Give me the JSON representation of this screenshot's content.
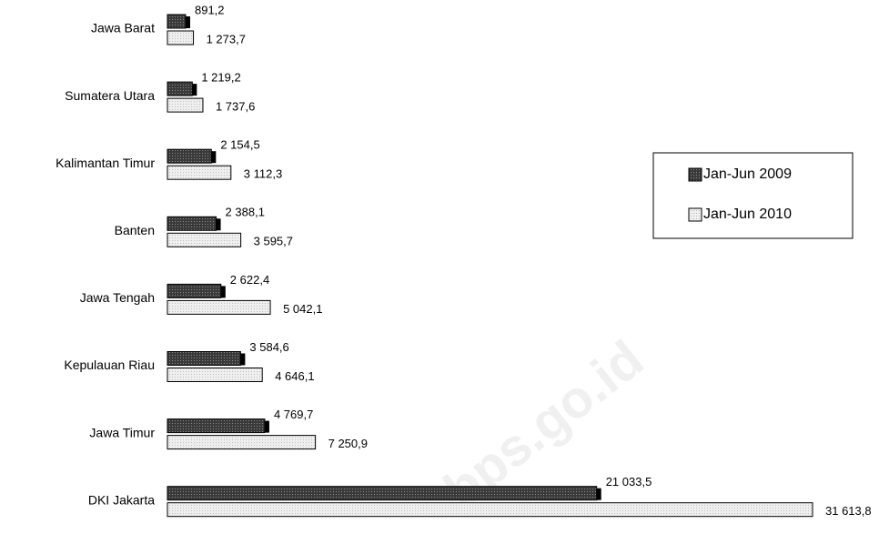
{
  "chart_data": {
    "type": "bar",
    "orientation": "horizontal",
    "categories": [
      "Jawa Barat",
      "Sumatera Utara",
      "Kalimantan Timur",
      "Banten",
      "Jawa Tengah",
      "Kepulauan Riau",
      "Jawa Timur",
      "DKI Jakarta"
    ],
    "series": [
      {
        "name": "Jan-Jun 2009",
        "color": "#4d4d4d",
        "values": [
          891.2,
          1219.2,
          2154.5,
          2388.1,
          2622.4,
          3584.6,
          4769.7,
          21033.5
        ],
        "value_labels": [
          "891,2",
          "1 219,2",
          "2 154,5",
          "2 388,1",
          "2 622,4",
          "3 584,6",
          "4 769,7",
          "21 033,5"
        ]
      },
      {
        "name": "Jan-Jun 2010",
        "color": "#e6e6e6",
        "values": [
          1273.7,
          1737.6,
          3112.3,
          3595.7,
          5042.1,
          4646.1,
          7250.9,
          31613.8
        ],
        "value_labels": [
          "1 273,7",
          "1 737,6",
          "3 112,3",
          "3 595,7",
          "5 042,1",
          "4 646,1",
          "7 250,9",
          "31 613,8"
        ]
      }
    ],
    "legend": "right",
    "watermark": "bps.go.id"
  }
}
